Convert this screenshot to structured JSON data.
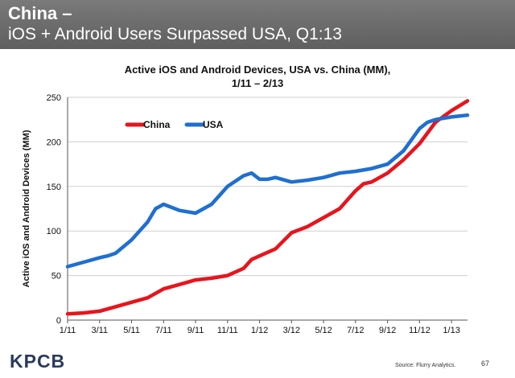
{
  "header": {
    "title": "China –",
    "subtitle": "iOS + Android Users Surpassed USA, Q1:13"
  },
  "chart_data": {
    "type": "line",
    "title_line1": "Active iOS and Android Devices, USA vs. China (MM),",
    "title_line2": "1/11 – 2/13",
    "ylabel": "Active iOS and Android Devices (MM)",
    "xlabel": "",
    "ylim": [
      0,
      250
    ],
    "yticks": [
      0,
      50,
      100,
      150,
      200,
      250
    ],
    "x_labels": [
      "1/11",
      "3/11",
      "5/11",
      "7/11",
      "9/11",
      "11/11",
      "1/12",
      "3/12",
      "5/12",
      "7/12",
      "9/12",
      "11/12",
      "1/13"
    ],
    "x_label_months": [
      0,
      2,
      4,
      6,
      8,
      10,
      12,
      14,
      16,
      18,
      20,
      22,
      24
    ],
    "xlim": [
      0,
      25
    ],
    "grid": true,
    "legend_position": "top-left",
    "series": [
      {
        "name": "China",
        "color": "#e8141c",
        "x": [
          0,
          1,
          2,
          3,
          4,
          5,
          6,
          7,
          8,
          9,
          10,
          11,
          11.5,
          12,
          13,
          14,
          15,
          16,
          17,
          18,
          18.5,
          19,
          20,
          21,
          22,
          23,
          24,
          25
        ],
        "values": [
          7,
          8,
          10,
          15,
          20,
          25,
          35,
          40,
          45,
          47,
          50,
          58,
          68,
          72,
          80,
          98,
          105,
          115,
          125,
          145,
          153,
          155,
          165,
          180,
          198,
          222,
          235,
          246
        ]
      },
      {
        "name": "USA",
        "color": "#1f6fd1",
        "x": [
          0,
          1,
          2,
          2.5,
          3,
          4,
          5,
          5.5,
          6,
          7,
          8,
          9,
          9.5,
          10,
          11,
          11.5,
          12,
          12.5,
          13,
          14,
          15,
          16,
          17,
          18,
          19,
          20,
          21,
          22,
          22.5,
          23,
          24,
          25
        ],
        "values": [
          60,
          65,
          70,
          72,
          75,
          90,
          110,
          125,
          130,
          123,
          120,
          130,
          140,
          150,
          162,
          165,
          158,
          158,
          160,
          155,
          157,
          160,
          165,
          167,
          170,
          175,
          190,
          215,
          222,
          225,
          228,
          230
        ]
      }
    ]
  },
  "footer": {
    "logo": "KPCB",
    "source": "Source: Flurry Analytics.",
    "page_number": "67"
  }
}
